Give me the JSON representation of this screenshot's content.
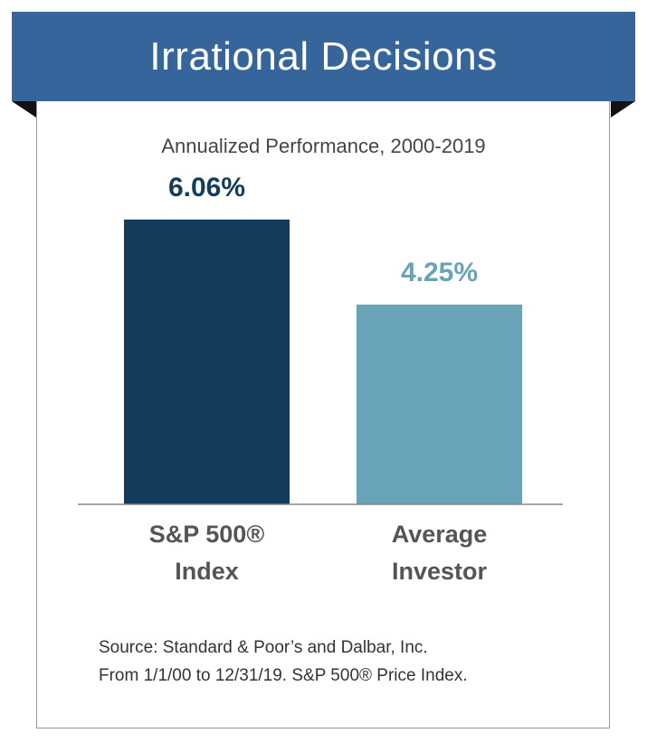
{
  "header": {
    "title": "Irrational Decisions"
  },
  "colors": {
    "banner": "#35659a",
    "sp500": "#143b5a",
    "investor": "#68a3b7",
    "baseline": "#888888",
    "category_text": "#555555"
  },
  "chart_data": {
    "type": "bar",
    "subtitle": "Annualized Performance, 2000-2019",
    "categories": [
      [
        "S&P 500®",
        "Index"
      ],
      [
        "Average",
        "Investor"
      ]
    ],
    "values": [
      6.06,
      4.25
    ],
    "data_labels": [
      "6.06%",
      "4.25%"
    ],
    "bar_colors": [
      "#143b5a",
      "#68a3b7"
    ],
    "ylim": [
      0,
      6.5
    ]
  },
  "footer": {
    "source_line1": "Source: Standard & Poor’s and Dalbar, Inc.",
    "source_line2": "From 1/1/00 to 12/31/19. S&P 500® Price Index."
  }
}
